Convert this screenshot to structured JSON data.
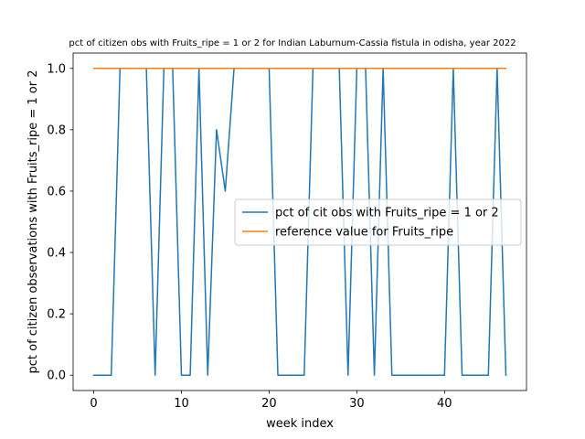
{
  "chart_data": {
    "type": "line",
    "title": "pct of citizen obs with Fruits_ripe = 1 or 2 for Indian Laburnum-Cassia fistula in odisha, year 2022",
    "xlabel": "week index",
    "ylabel": "pct of citizen observations with Fruits_ripe = 1 or 2",
    "xlim": [
      -2.35,
      49.35
    ],
    "ylim": [
      -0.05,
      1.05
    ],
    "xticks": [
      0,
      10,
      20,
      30,
      40
    ],
    "yticks": [
      0.0,
      0.2,
      0.4,
      0.6,
      0.8,
      1.0
    ],
    "ytick_labels": [
      "0.0",
      "0.2",
      "0.4",
      "0.6",
      "0.8",
      "1.0"
    ],
    "grid": false,
    "legend_position": "center-right",
    "series": [
      {
        "name": "pct of cit obs with Fruits_ripe = 1 or 2",
        "color": "#1f77b4",
        "x": [
          0,
          1,
          2,
          3,
          4,
          5,
          6,
          7,
          8,
          9,
          10,
          11,
          12,
          13,
          14,
          15,
          16,
          17,
          18,
          19,
          20,
          21,
          22,
          23,
          24,
          25,
          26,
          27,
          28,
          29,
          30,
          31,
          32,
          33,
          34,
          35,
          36,
          37,
          38,
          39,
          40,
          41,
          42,
          43,
          44,
          45,
          46,
          47
        ],
        "y": [
          0,
          0,
          0,
          1,
          1,
          1,
          1,
          0,
          1,
          1,
          0,
          0,
          1,
          0,
          0.8,
          0.6,
          1,
          1,
          1,
          1,
          1,
          0,
          0,
          0,
          0,
          1,
          1,
          1,
          1,
          0,
          1,
          1,
          0,
          1,
          0,
          0,
          0,
          0,
          0,
          0,
          0,
          1,
          0,
          0,
          0,
          0,
          1,
          0
        ]
      },
      {
        "name": "reference value for Fruits_ripe",
        "color": "#ff7f0e",
        "x": [
          0,
          47
        ],
        "y": [
          1,
          1
        ]
      }
    ]
  }
}
